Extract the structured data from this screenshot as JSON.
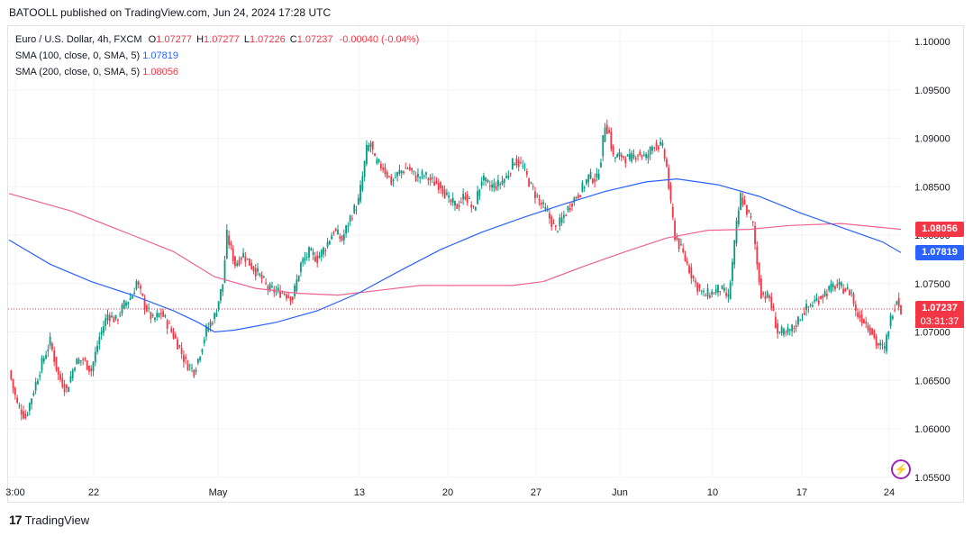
{
  "header": {
    "publisher_line": "BATOOLL published on TradingView.com, Jun 24, 2024 17:28 UTC"
  },
  "legend": {
    "symbol": "Euro / U.S. Dollar, 4h, FXCM",
    "ohlc": {
      "o_label": "O",
      "o": "1.07277",
      "h_label": "H",
      "h": "1.07277",
      "l_label": "L",
      "l": "1.07226",
      "c_label": "C",
      "c": "1.07237",
      "change": "-0.00040 (-0.04%)"
    },
    "sma100_label": "SMA (100, close, 0, SMA, 5)",
    "sma100_value": "1.07819",
    "sma200_label": "SMA (200, close, 0, SMA, 5)",
    "sma200_value": "1.08056"
  },
  "tags": {
    "sma200": "1.08056",
    "sma100": "1.07819",
    "last_price": "1.07237",
    "countdown": "03:31:37"
  },
  "footer": {
    "brand": "TradingView",
    "logo": "17"
  },
  "colors": {
    "up": "#089981",
    "down": "#f23645",
    "sma100": "#2962ff",
    "sma200": "#f06292",
    "grid": "#f0f3fa",
    "axis_text": "#131722"
  },
  "chart_data": {
    "type": "candlestick",
    "interval": "4h",
    "y_axis_labels": [
      "1.10000",
      "1.09500",
      "1.09000",
      "1.08500",
      "1.08000",
      "1.07500",
      "1.07000",
      "1.06500",
      "1.06000",
      "1.05500"
    ],
    "x_axis_labels": [
      "3:00",
      "22",
      "May",
      "13",
      "20",
      "27",
      "Jun",
      "10",
      "17",
      "24"
    ],
    "ylim": [
      1.0548,
      1.1014
    ],
    "close_path": [
      [
        0,
        1.066
      ],
      [
        4,
        1.0625
      ],
      [
        8,
        1.0612
      ],
      [
        12,
        1.064
      ],
      [
        16,
        1.0668
      ],
      [
        20,
        1.069
      ],
      [
        24,
        1.0655
      ],
      [
        28,
        1.064
      ],
      [
        32,
        1.0668
      ],
      [
        36,
        1.0672
      ],
      [
        40,
        1.066
      ],
      [
        44,
        1.0695
      ],
      [
        48,
        1.0718
      ],
      [
        52,
        1.0712
      ],
      [
        56,
        1.0728
      ],
      [
        60,
        1.0738
      ],
      [
        62,
        1.0752
      ],
      [
        66,
        1.0728
      ],
      [
        70,
        1.0712
      ],
      [
        74,
        1.072
      ],
      [
        78,
        1.0705
      ],
      [
        82,
        1.0688
      ],
      [
        86,
        1.0668
      ],
      [
        90,
        1.066
      ],
      [
        92,
        1.0672
      ],
      [
        96,
        1.0702
      ],
      [
        100,
        1.0716
      ],
      [
        104,
        1.075
      ],
      [
        106,
        1.08
      ],
      [
        110,
        1.077
      ],
      [
        114,
        1.078
      ],
      [
        118,
        1.0768
      ],
      [
        122,
        1.0758
      ],
      [
        126,
        1.0745
      ],
      [
        130,
        1.0742
      ],
      [
        134,
        1.074
      ],
      [
        138,
        1.0735
      ],
      [
        142,
        1.077
      ],
      [
        146,
        1.0782
      ],
      [
        150,
        1.0776
      ],
      [
        154,
        1.0788
      ],
      [
        158,
        1.0805
      ],
      [
        162,
        1.0795
      ],
      [
        166,
        1.0818
      ],
      [
        170,
        1.0835
      ],
      [
        172,
        1.086
      ],
      [
        174,
        1.0888
      ],
      [
        176,
        1.0895
      ],
      [
        178,
        1.0876
      ],
      [
        182,
        1.087
      ],
      [
        186,
        1.0855
      ],
      [
        190,
        1.0865
      ],
      [
        194,
        1.087
      ],
      [
        198,
        1.086
      ],
      [
        202,
        1.0862
      ],
      [
        206,
        1.0855
      ],
      [
        210,
        1.0852
      ],
      [
        214,
        1.0835
      ],
      [
        218,
        1.083
      ],
      [
        222,
        1.0842
      ],
      [
        226,
        1.0825
      ],
      [
        230,
        1.0858
      ],
      [
        234,
        1.085
      ],
      [
        238,
        1.0852
      ],
      [
        242,
        1.086
      ],
      [
        246,
        1.0878
      ],
      [
        250,
        1.087
      ],
      [
        254,
        1.085
      ],
      [
        258,
        1.0835
      ],
      [
        262,
        1.0822
      ],
      [
        266,
        1.0805
      ],
      [
        270,
        1.082
      ],
      [
        274,
        1.0835
      ],
      [
        278,
        1.0845
      ],
      [
        282,
        1.086
      ],
      [
        286,
        1.0858
      ],
      [
        288,
        1.088
      ],
      [
        290,
        1.0915
      ],
      [
        292,
        1.0905
      ],
      [
        294,
        1.088
      ],
      [
        298,
        1.0882
      ],
      [
        302,
        1.0878
      ],
      [
        306,
        1.0885
      ],
      [
        310,
        1.088
      ],
      [
        314,
        1.0895
      ],
      [
        318,
        1.089
      ],
      [
        320,
        1.087
      ],
      [
        322,
        1.083
      ],
      [
        324,
        1.08
      ],
      [
        326,
        1.079
      ],
      [
        330,
        1.077
      ],
      [
        334,
        1.075
      ],
      [
        338,
        1.0738
      ],
      [
        342,
        1.074
      ],
      [
        346,
        1.0745
      ],
      [
        350,
        1.0735
      ],
      [
        352,
        1.077
      ],
      [
        354,
        1.081
      ],
      [
        356,
        1.084
      ],
      [
        358,
        1.083
      ],
      [
        362,
        1.081
      ],
      [
        364,
        1.077
      ],
      [
        366,
        1.074
      ],
      [
        370,
        1.0735
      ],
      [
        374,
        1.07
      ],
      [
        378,
        1.0698
      ],
      [
        382,
        1.0705
      ],
      [
        386,
        1.072
      ],
      [
        390,
        1.0728
      ],
      [
        394,
        1.0735
      ],
      [
        398,
        1.0742
      ],
      [
        402,
        1.0748
      ],
      [
        406,
        1.0745
      ],
      [
        410,
        1.074
      ],
      [
        412,
        1.072
      ],
      [
        416,
        1.0712
      ],
      [
        420,
        1.07
      ],
      [
        422,
        1.0688
      ],
      [
        426,
        1.0682
      ],
      [
        428,
        1.0705
      ],
      [
        430,
        1.0722
      ],
      [
        432,
        1.0735
      ],
      [
        434,
        1.07237
      ]
    ],
    "sma100_path": [
      [
        0,
        1.0795
      ],
      [
        20,
        1.077
      ],
      [
        40,
        1.0752
      ],
      [
        60,
        1.0738
      ],
      [
        80,
        1.0722
      ],
      [
        92,
        1.071
      ],
      [
        100,
        1.07
      ],
      [
        110,
        1.0702
      ],
      [
        130,
        1.071
      ],
      [
        150,
        1.0722
      ],
      [
        170,
        1.074
      ],
      [
        190,
        1.0763
      ],
      [
        210,
        1.0785
      ],
      [
        230,
        1.0803
      ],
      [
        250,
        1.0818
      ],
      [
        270,
        1.0832
      ],
      [
        290,
        1.0845
      ],
      [
        310,
        1.0855
      ],
      [
        325,
        1.0858
      ],
      [
        345,
        1.0852
      ],
      [
        365,
        1.084
      ],
      [
        385,
        1.0823
      ],
      [
        405,
        1.0808
      ],
      [
        425,
        1.0793
      ],
      [
        434,
        1.0782
      ]
    ],
    "sma200_path": [
      [
        0,
        1.0843
      ],
      [
        30,
        1.0825
      ],
      [
        60,
        1.08
      ],
      [
        80,
        1.0783
      ],
      [
        100,
        1.0757
      ],
      [
        120,
        1.0745
      ],
      [
        140,
        1.074
      ],
      [
        160,
        1.0738
      ],
      [
        180,
        1.0743
      ],
      [
        200,
        1.0748
      ],
      [
        220,
        1.0748
      ],
      [
        245,
        1.0748
      ],
      [
        260,
        1.0752
      ],
      [
        280,
        1.0768
      ],
      [
        300,
        1.0783
      ],
      [
        320,
        1.0797
      ],
      [
        340,
        1.0805
      ],
      [
        360,
        1.0806
      ],
      [
        380,
        1.081
      ],
      [
        405,
        1.0812
      ],
      [
        434,
        1.0806
      ]
    ]
  }
}
